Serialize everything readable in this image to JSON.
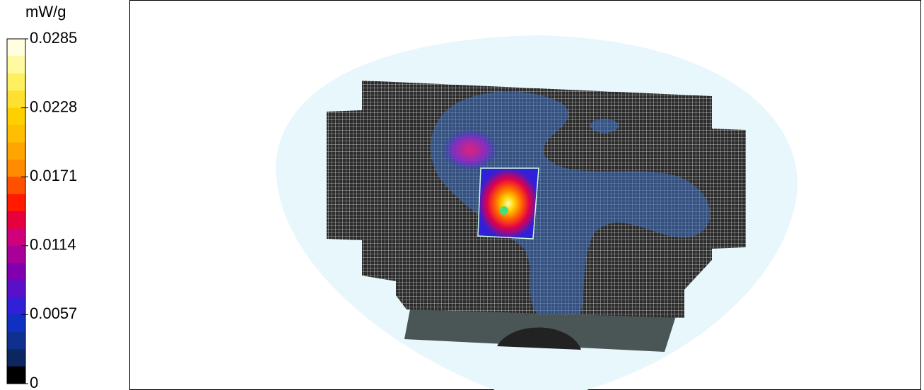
{
  "colorbar": {
    "unit": "mW/g",
    "ticks": [
      0.0285,
      0.0228,
      0.0171,
      0.0114,
      0.0057,
      0
    ]
  }
}
